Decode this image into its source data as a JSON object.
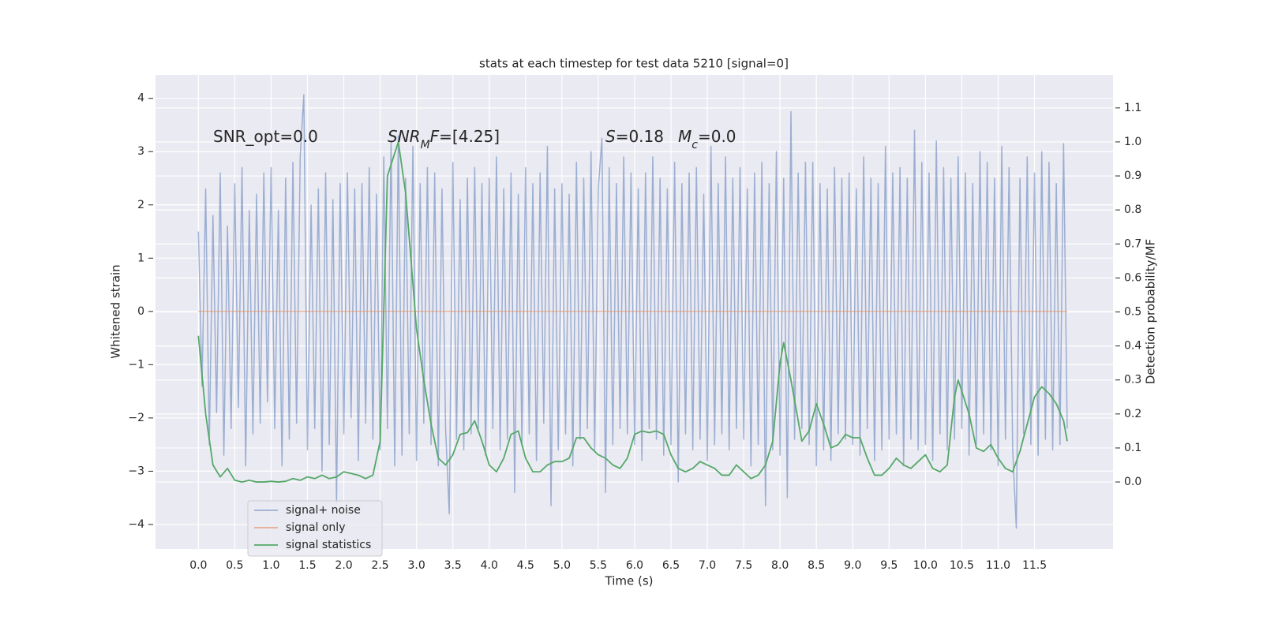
{
  "chart_data": {
    "type": "line",
    "title": "stats at each timestep for test data 5210 [signal=0]",
    "xlabel": "Time (s)",
    "ylabel": "Whitened strain",
    "y2label": "Detection probability/MF",
    "xlim": [
      -0.59,
      12.58
    ],
    "ylim": [
      -4.46,
      4.44
    ],
    "y2lim": [
      -0.197,
      1.197
    ],
    "xticks": [
      {
        "value": 0,
        "label": "0.0"
      },
      0.5,
      {
        "value": 1,
        "label": "1.0"
      },
      1.5,
      {
        "value": 2,
        "label": "2.0"
      },
      2.5,
      {
        "value": 3,
        "label": "3.0"
      },
      3.5,
      {
        "value": 4,
        "label": "4.0"
      },
      4.5,
      {
        "value": 5,
        "label": "5.0"
      },
      5.5,
      {
        "value": 6,
        "label": "6.0"
      },
      6.5,
      {
        "value": 7,
        "label": "7.0"
      },
      7.5,
      {
        "value": 8,
        "label": "8.0"
      },
      8.5,
      {
        "value": 9,
        "label": "9.0"
      },
      9.5,
      {
        "value": 10,
        "label": "10.0"
      },
      10.5,
      {
        "value": 11,
        "label": "11.0"
      },
      11.5
    ],
    "yticks": [
      {
        "value": -4,
        "label": "−4"
      },
      {
        "value": -3,
        "label": "−3"
      },
      {
        "value": -2,
        "label": "−2"
      },
      {
        "value": -1,
        "label": "−1"
      },
      0,
      1,
      2,
      3,
      4
    ],
    "y2ticks": [
      {
        "value": 0,
        "label": "0.0"
      },
      0.1,
      0.2,
      0.3,
      0.4,
      0.5,
      0.6,
      0.7,
      0.8,
      0.9,
      {
        "value": 1,
        "label": "1.0"
      },
      1.1
    ],
    "grid": true,
    "legend": "lower left",
    "annotations": [
      {
        "parts": [
          {
            "text": "SNR_opt=0.0",
            "style": "normal"
          }
        ]
      },
      {
        "parts": [
          {
            "text": "SNR",
            "style": "italic"
          },
          {
            "text": "M",
            "style": "italic-sub"
          },
          {
            "text": "F",
            "style": "italic"
          },
          {
            "text": "=[4.25]",
            "style": "normal"
          }
        ]
      },
      {
        "parts": [
          {
            "text": "S",
            "style": "italic"
          },
          {
            "text": "=0.18",
            "style": "normal"
          }
        ]
      },
      {
        "parts": [
          {
            "text": "M",
            "style": "italic"
          },
          {
            "text": "c",
            "style": "italic-sub"
          },
          {
            "text": "=0.0",
            "style": "normal"
          }
        ]
      }
    ],
    "series": [
      {
        "name": "signal+ noise",
        "color": "#4c72b0",
        "opacity": 0.5,
        "x": [
          0,
          0.05,
          0.1,
          0.15,
          0.2,
          0.25,
          0.3,
          0.35,
          0.4,
          0.45,
          0.5,
          0.55,
          0.6,
          0.65,
          0.7,
          0.75,
          0.8,
          0.85,
          0.9,
          0.95,
          1,
          1.05,
          1.1,
          1.15,
          1.2,
          1.25,
          1.3,
          1.35,
          1.4,
          1.45,
          1.5,
          1.55,
          1.6,
          1.65,
          1.7,
          1.75,
          1.8,
          1.85,
          1.9,
          1.95,
          2,
          2.05,
          2.1,
          2.15,
          2.2,
          2.25,
          2.3,
          2.35,
          2.4,
          2.45,
          2.5,
          2.55,
          2.6,
          2.65,
          2.7,
          2.75,
          2.8,
          2.85,
          2.9,
          2.95,
          3,
          3.05,
          3.1,
          3.15,
          3.2,
          3.25,
          3.3,
          3.35,
          3.4,
          3.45,
          3.5,
          3.55,
          3.6,
          3.65,
          3.7,
          3.75,
          3.8,
          3.85,
          3.9,
          3.95,
          4,
          4.05,
          4.1,
          4.15,
          4.2,
          4.25,
          4.3,
          4.35,
          4.4,
          4.45,
          4.5,
          4.55,
          4.6,
          4.65,
          4.7,
          4.75,
          4.8,
          4.85,
          4.9,
          4.95,
          5,
          5.05,
          5.1,
          5.15,
          5.2,
          5.25,
          5.3,
          5.35,
          5.4,
          5.45,
          5.5,
          5.55,
          5.6,
          5.65,
          5.7,
          5.75,
          5.8,
          5.85,
          5.9,
          5.95,
          6,
          6.05,
          6.1,
          6.15,
          6.2,
          6.25,
          6.3,
          6.35,
          6.4,
          6.45,
          6.5,
          6.55,
          6.6,
          6.65,
          6.7,
          6.75,
          6.8,
          6.85,
          6.9,
          6.95,
          7,
          7.05,
          7.1,
          7.15,
          7.2,
          7.25,
          7.3,
          7.35,
          7.4,
          7.45,
          7.5,
          7.55,
          7.6,
          7.65,
          7.7,
          7.75,
          7.8,
          7.85,
          7.9,
          7.95,
          8,
          8.05,
          8.1,
          8.15,
          8.2,
          8.25,
          8.3,
          8.35,
          8.4,
          8.45,
          8.5,
          8.55,
          8.6,
          8.65,
          8.7,
          8.75,
          8.8,
          8.85,
          8.9,
          8.95,
          9,
          9.05,
          9.1,
          9.15,
          9.2,
          9.25,
          9.3,
          9.35,
          9.4,
          9.45,
          9.5,
          9.55,
          9.6,
          9.65,
          9.7,
          9.75,
          9.8,
          9.85,
          9.9,
          9.95,
          10,
          10.05,
          10.1,
          10.15,
          10.2,
          10.25,
          10.3,
          10.35,
          10.4,
          10.45,
          10.5,
          10.55,
          10.6,
          10.65,
          10.7,
          10.75,
          10.8,
          10.85,
          10.9,
          10.95,
          11,
          11.05,
          11.1,
          11.15,
          11.2,
          11.25,
          11.3,
          11.35,
          11.4,
          11.45,
          11.5,
          11.55,
          11.6,
          11.65,
          11.7,
          11.75,
          11.8,
          11.85,
          11.9,
          11.95
        ],
        "values": [
          1.5,
          -1.4,
          2.3,
          -2.5,
          1.8,
          -1.9,
          2.6,
          -2.7,
          1.6,
          -2.2,
          2.4,
          -1.8,
          2.7,
          -2.9,
          1.9,
          -2.3,
          2.2,
          -2.1,
          2.6,
          -1.7,
          2.7,
          -2.2,
          1.9,
          -2.9,
          2.5,
          -2.4,
          2.8,
          -2.1,
          2.9,
          4.07,
          -2.6,
          2.0,
          -2.2,
          2.3,
          -3.0,
          2.6,
          -2.5,
          2.1,
          -3.6,
          2.4,
          -2.3,
          2.6,
          -2.0,
          2.3,
          -2.8,
          2.4,
          -2.1,
          2.7,
          -2.4,
          2.2,
          -2.6,
          2.9,
          -2.2,
          3.2,
          -2.9,
          3.3,
          -2.7,
          2.5,
          -2.3,
          3.1,
          -2.8,
          2.4,
          -2.1,
          2.7,
          -2.5,
          2.6,
          -2.9,
          2.3,
          -2.2,
          -3.8,
          2.8,
          -2.4,
          2.1,
          -2.6,
          2.5,
          -2.3,
          2.7,
          -2.2,
          2.4,
          -2.7,
          2.5,
          -2.2,
          2.9,
          -2.6,
          2.3,
          -2.4,
          2.6,
          -3.4,
          2.2,
          -2.5,
          2.7,
          -2.3,
          2.4,
          -2.8,
          2.6,
          -2.1,
          3.1,
          -3.65,
          2.3,
          -2.6,
          2.4,
          -2.3,
          2.2,
          -2.9,
          2.8,
          -2.4,
          2.5,
          -2.2,
          3.0,
          -2.6,
          2.3,
          3.25,
          -3.4,
          2.7,
          -2.5,
          2.4,
          -2.2,
          2.9,
          -2.3,
          2.6,
          -2.5,
          2.3,
          -2.8,
          2.6,
          -2.2,
          2.9,
          -2.4,
          2.5,
          -2.7,
          2.3,
          -2.5,
          2.8,
          -3.2,
          2.4,
          -2.3,
          2.6,
          -2.6,
          2.7,
          -2.4,
          2.2,
          -2.8,
          3.1,
          -2.5,
          2.4,
          -2.3,
          2.9,
          -2.6,
          2.5,
          -2.2,
          2.7,
          -2.4,
          2.3,
          -2.9,
          2.6,
          -2.5,
          2.8,
          -3.65,
          2.4,
          -2.6,
          3.0,
          -2.7,
          2.5,
          -3.5,
          3.75,
          -2.4,
          2.6,
          -2.2,
          2.8,
          -2.5,
          2.8,
          -2.9,
          2.4,
          -2.6,
          2.3,
          -2.8,
          2.7,
          -2.3,
          2.5,
          -2.4,
          2.6,
          -2.5,
          2.3,
          -2.7,
          2.9,
          -2.2,
          2.5,
          -2.8,
          2.4,
          -2.6,
          3.1,
          -2.4,
          2.6,
          -2.3,
          2.7,
          -2.9,
          2.5,
          -2.4,
          3.4,
          -2.6,
          2.8,
          -2.5,
          2.6,
          -2.8,
          3.2,
          -2.3,
          2.7,
          -2.6,
          2.5,
          -2.4,
          2.9,
          -2.2,
          2.6,
          -2.7,
          2.4,
          -2.5,
          3.0,
          -2.3,
          2.8,
          -2.6,
          2.5,
          -2.9,
          3.1,
          -2.4,
          2.7,
          -2.6,
          -4.07,
          2.5,
          -2.3,
          2.9,
          -2.5,
          2.6,
          -2.7,
          3.0,
          -2.4,
          2.8,
          -2.6,
          2.4,
          -2.5,
          3.15,
          -2.2
        ]
      },
      {
        "name": "signal only",
        "color": "#dd8452",
        "opacity": 0.6,
        "x": [
          0,
          11.95
        ],
        "values": [
          0,
          0
        ]
      },
      {
        "name": "signal statistics",
        "color": "#55a868",
        "opacity": 1,
        "axis": "y2",
        "x": [
          0,
          0.1,
          0.2,
          0.3,
          0.4,
          0.5,
          0.6,
          0.7,
          0.8,
          0.9,
          1,
          1.1,
          1.2,
          1.3,
          1.4,
          1.5,
          1.6,
          1.7,
          1.8,
          1.9,
          2,
          2.1,
          2.2,
          2.3,
          2.4,
          2.5,
          2.6,
          2.75,
          2.85,
          3,
          3.1,
          3.2,
          3.3,
          3.4,
          3.5,
          3.6,
          3.7,
          3.8,
          3.9,
          4,
          4.1,
          4.2,
          4.3,
          4.4,
          4.5,
          4.6,
          4.7,
          4.8,
          4.9,
          5,
          5.1,
          5.2,
          5.3,
          5.4,
          5.5,
          5.6,
          5.7,
          5.8,
          5.9,
          6,
          6.1,
          6.2,
          6.3,
          6.4,
          6.5,
          6.6,
          6.7,
          6.8,
          6.9,
          7,
          7.1,
          7.2,
          7.3,
          7.4,
          7.5,
          7.6,
          7.7,
          7.8,
          7.9,
          8,
          8.05,
          8.15,
          8.3,
          8.4,
          8.5,
          8.6,
          8.7,
          8.8,
          8.9,
          9,
          9.1,
          9.2,
          9.3,
          9.4,
          9.5,
          9.6,
          9.7,
          9.8,
          9.9,
          10,
          10.1,
          10.2,
          10.3,
          10.4,
          10.45,
          10.6,
          10.7,
          10.8,
          10.9,
          11,
          11.1,
          11.2,
          11.3,
          11.4,
          11.5,
          11.6,
          11.7,
          11.8,
          11.9,
          11.95
        ],
        "values": [
          0.43,
          0.2,
          0.05,
          0.015,
          0.04,
          0.005,
          0,
          0.005,
          0,
          0,
          0.002,
          0,
          0.002,
          0.01,
          0.005,
          0.015,
          0.01,
          0.02,
          0.01,
          0.015,
          0.03,
          0.025,
          0.02,
          0.01,
          0.02,
          0.12,
          0.9,
          1.0,
          0.85,
          0.45,
          0.3,
          0.17,
          0.07,
          0.05,
          0.08,
          0.14,
          0.145,
          0.18,
          0.12,
          0.05,
          0.03,
          0.07,
          0.14,
          0.15,
          0.07,
          0.03,
          0.03,
          0.05,
          0.06,
          0.06,
          0.07,
          0.13,
          0.13,
          0.1,
          0.08,
          0.07,
          0.05,
          0.04,
          0.07,
          0.14,
          0.15,
          0.145,
          0.15,
          0.14,
          0.08,
          0.04,
          0.03,
          0.04,
          0.06,
          0.05,
          0.04,
          0.02,
          0.02,
          0.05,
          0.03,
          0.01,
          0.02,
          0.05,
          0.12,
          0.35,
          0.41,
          0.3,
          0.12,
          0.15,
          0.23,
          0.17,
          0.1,
          0.11,
          0.14,
          0.13,
          0.13,
          0.07,
          0.02,
          0.02,
          0.04,
          0.07,
          0.05,
          0.04,
          0.06,
          0.08,
          0.04,
          0.03,
          0.05,
          0.25,
          0.3,
          0.2,
          0.1,
          0.09,
          0.11,
          0.07,
          0.04,
          0.03,
          0.09,
          0.17,
          0.25,
          0.28,
          0.26,
          0.23,
          0.18,
          0.12
        ]
      }
    ]
  }
}
